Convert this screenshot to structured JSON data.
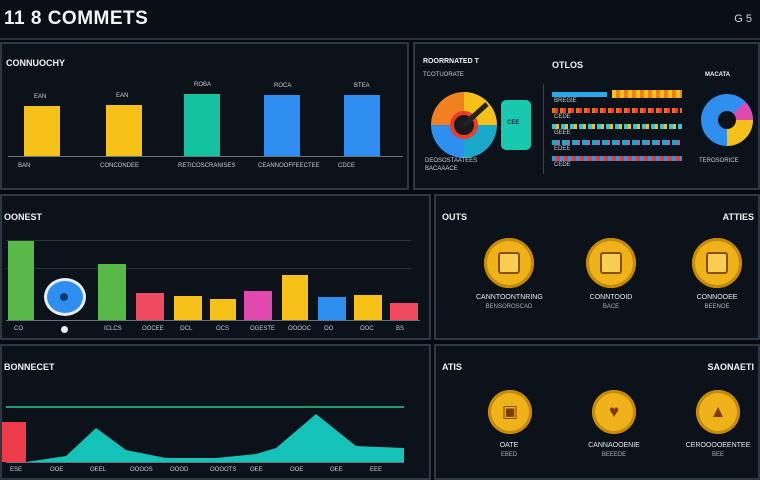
{
  "header": {
    "title": "11 8 COMMETS",
    "right_text": "G 5"
  },
  "panel_top_left": {
    "title": "CONNUOCHY",
    "bars": [
      {
        "top_label": "EAN",
        "bottom_label": "BAN",
        "value": 0.62,
        "color": "#f5c017"
      },
      {
        "top_label": "EAN",
        "bottom_label": "CONCONDEE",
        "value": 0.64,
        "color": "#f5c017"
      },
      {
        "top_label": "ROBA",
        "bottom_label": "RETICOSCRANISES",
        "value": 0.77,
        "color": "#14c2a0"
      },
      {
        "top_label": "ROCA",
        "bottom_label": "CEANNOOFFEECTEE",
        "value": 0.76,
        "color": "#2e8ff0"
      },
      {
        "top_label": "BTEA",
        "bottom_label": "CDCE",
        "value": 0.76,
        "color": "#2e8ff0"
      }
    ]
  },
  "panel_top_right": {
    "title_a": "ROORRNATED T",
    "title_a2": "TCOTUORATE",
    "title_b": "OTLOS",
    "title_c": "MACATA",
    "pie_caption": "DEOSOSTAATEES",
    "pie_caption2": "BACAAACE",
    "box_text": "CEE",
    "right_caption": "TEROSORICE",
    "row_labels": [
      "BREGIE",
      "CEDE",
      "GEEE",
      "EDEE",
      "CEDE"
    ]
  },
  "panel_mid_left": {
    "title": "OONEST",
    "bars": [
      {
        "label": "CO",
        "value": 0.82,
        "color": "#58b84a"
      },
      {
        "label": "",
        "value": 0,
        "color": "#2e8ff0"
      },
      {
        "label": "ICLCS",
        "value": 0.58,
        "color": "#58b84a"
      },
      {
        "label": "OOCEE",
        "value": 0.28,
        "color": "#ef4a60"
      },
      {
        "label": "OCL",
        "value": 0.25,
        "color": "#f5c017"
      },
      {
        "label": "OCS",
        "value": 0.22,
        "color": "#f5c017"
      },
      {
        "label": "OGESTE",
        "value": 0.3,
        "color": "#e04ab0"
      },
      {
        "label": "OOOOC",
        "value": 0.47,
        "color": "#f5c017"
      },
      {
        "label": "OO",
        "value": 0.24,
        "color": "#2e8ff0"
      },
      {
        "label": "OOC",
        "value": 0.26,
        "color": "#f5c017"
      },
      {
        "label": "BS",
        "value": 0.18,
        "color": "#ef4a60"
      }
    ]
  },
  "panel_mid_right": {
    "title_left": "OUTS",
    "title_right": "ATTIES",
    "items": [
      {
        "caption": "CANNTOONTNRING",
        "sub": "BENSOROSCAD"
      },
      {
        "caption": "CONNTOOID",
        "sub": "BACE"
      },
      {
        "caption": "CONNOOEE",
        "sub": "BEENOE"
      }
    ]
  },
  "panel_bottom_left": {
    "title": "BONNECET",
    "labels": [
      "ESE",
      "OOE",
      "OEEL",
      "OOOOS",
      "OOOD",
      "OOOOTS",
      "OEE",
      "OOE",
      "OEE",
      "EEE"
    ]
  },
  "panel_bottom_right": {
    "title_left": "ATIS",
    "title_right": "SAONAETI",
    "items": [
      {
        "caption": "OATE",
        "sub": "EBED"
      },
      {
        "caption": "CANNAOOENIE",
        "sub": "BEEEDE"
      },
      {
        "caption": "CEROOOOEENTEE",
        "sub": "BEE"
      }
    ]
  },
  "colors": {
    "background": "#05080c",
    "panel": "#0b1219",
    "yellow": "#f5c017",
    "teal": "#14c2a0",
    "blue": "#2e8ff0",
    "green": "#58b84a",
    "red": "#ef4a60"
  }
}
